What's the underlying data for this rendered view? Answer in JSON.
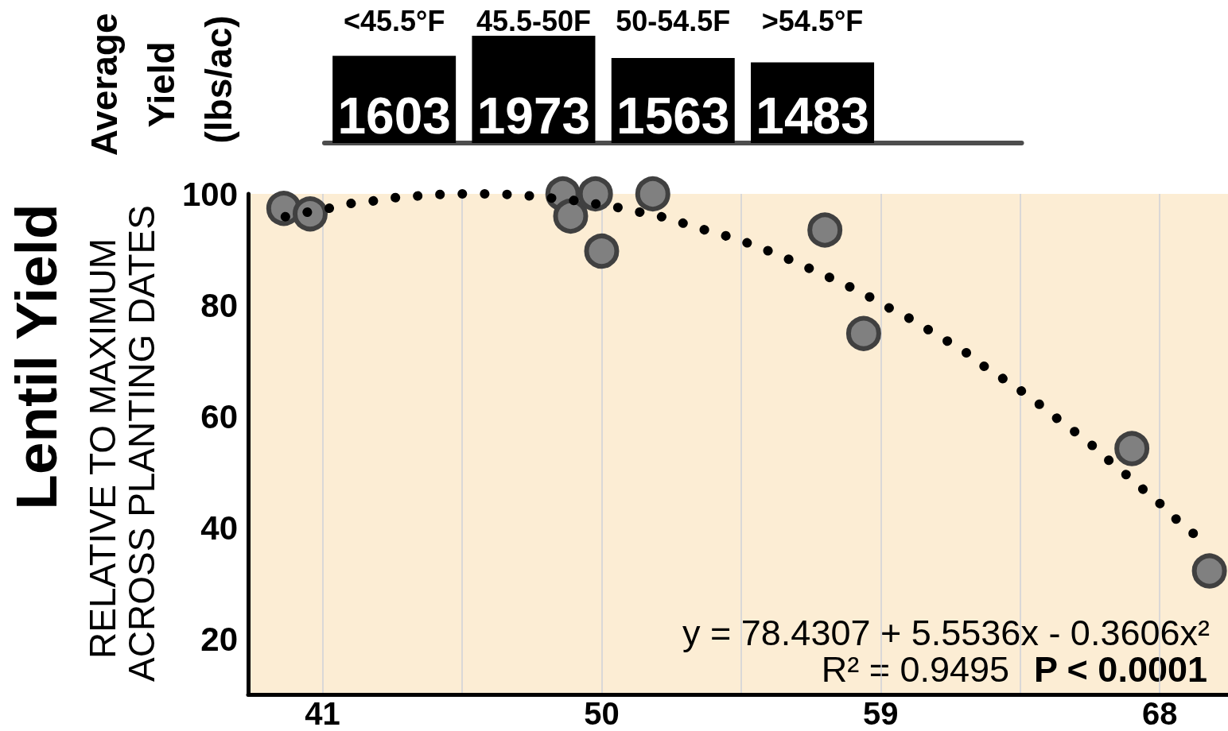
{
  "chart_data": [
    {
      "type": "bar",
      "ylabel": "Average Yield (lbs/ac)",
      "categories": [
        "<45.5°F",
        "45.5-50F",
        "50-54.5F",
        ">54.5°F"
      ],
      "values": [
        1603,
        1973,
        1563,
        1483
      ],
      "color": "#000000",
      "data_labels": true,
      "tick_labels": "x"
    },
    {
      "type": "scatter",
      "ylabel": "Lentil Yield",
      "annotations": [
        "RELATIVE TO MAXIMUM ACROSS PLANTING DATES",
        "y = 78.4307 + 5.5536x - 0.3606x²",
        "R² = 0.9495",
        "P < 0.0001"
      ],
      "xlim": [
        38.6,
        70.2
      ],
      "xticks": [
        41,
        {
          "value": 45.5,
          "label": null
        },
        50,
        {
          "value": 54.5,
          "label": null
        },
        59,
        {
          "value": 63.5,
          "label": null
        },
        68
      ],
      "ylim": [
        10,
        100
      ],
      "yticks": [
        20,
        40,
        60,
        80,
        100
      ],
      "grid": "x",
      "series": [
        {
          "type": "scatter",
          "color": "#808080",
          "marker": "circle",
          "x": [
            39.75,
            40.6,
            48.75,
            49.0,
            49.8,
            50.0,
            51.65,
            57.2,
            58.45,
            67.1,
            69.6
          ],
          "values": [
            97.4,
            96.4,
            100,
            96,
            100,
            89.7,
            100,
            93.5,
            74.9,
            54.2,
            32.2
          ]
        },
        {
          "type": "line",
          "color": "#000000",
          "marker": "none",
          "line_style": "dotted",
          "x": [
            39.8,
            40.4,
            41.2,
            41.8,
            42.6,
            43.3,
            44.0,
            44.8,
            45.5,
            46.3,
            47.0,
            47.8,
            48.6,
            49.3,
            50.0,
            50.7,
            51.4,
            52.1,
            52.7,
            53.4,
            54.1,
            54.8,
            55.4,
            56.1,
            56.7,
            57.3,
            58.0,
            58.6,
            59.2,
            59.9,
            60.5,
            61.1,
            61.7,
            62.2,
            62.8,
            63.4,
            64.0,
            64.5,
            65.1,
            65.7,
            66.2,
            66.8,
            67.3,
            67.9,
            68.4,
            69.0,
            69.5
          ],
          "values": [
            95.9,
            96.6,
            97.4,
            98.2,
            98.7,
            99.3,
            99.6,
            99.9,
            100,
            100,
            99.9,
            99.6,
            99.1,
            98.7,
            98.0,
            97.4,
            96.5,
            95.7,
            94.6,
            93.4,
            92.3,
            91.0,
            89.7,
            88.1,
            86.6,
            85.1,
            83.3,
            81.6,
            79.7,
            77.7,
            75.7,
            73.7,
            71.7,
            69.5,
            67.3,
            65.1,
            62.7,
            60.4,
            57.9,
            55.4,
            52.8,
            50.1,
            47.6,
            44.9,
            42.1,
            39.4,
            36.6
          ]
        }
      ]
    }
  ]
}
